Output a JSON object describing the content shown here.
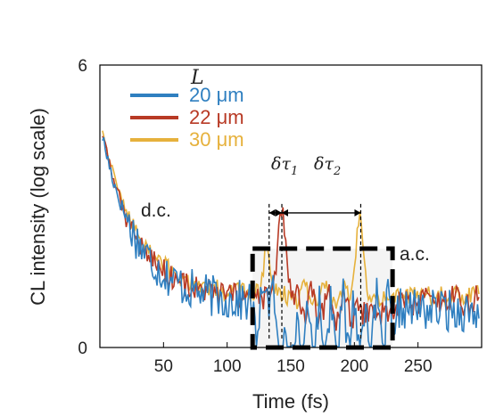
{
  "chart_data": {
    "type": "line",
    "xlabel": "Time (fs)",
    "ylabel": "CL intensity (log scale)",
    "xlim": [
      0,
      300
    ],
    "ylim": [
      0,
      6
    ],
    "y_scale": "log",
    "x_ticks": [
      50,
      100,
      150,
      200,
      250
    ],
    "y_ticks": [
      0,
      6
    ],
    "grid": false,
    "legend": {
      "title": "L",
      "placement": "top-left"
    },
    "series": [
      {
        "name": "20 μm",
        "color": "#2f7fc0"
      },
      {
        "name": "22 μm",
        "color": "#b83a25"
      },
      {
        "name": "30 μm",
        "color": "#e6b13c"
      }
    ],
    "annotations": {
      "dc": "d.c.",
      "ac": "a.c.",
      "delta_tau_1": "δτ",
      "delta_tau_1_sub": "1",
      "delta_tau_2": "δτ",
      "delta_tau_2_sub": "2"
    },
    "ac_region_x": [
      120,
      230
    ],
    "marker_lines_x": [
      133,
      143,
      205
    ]
  }
}
